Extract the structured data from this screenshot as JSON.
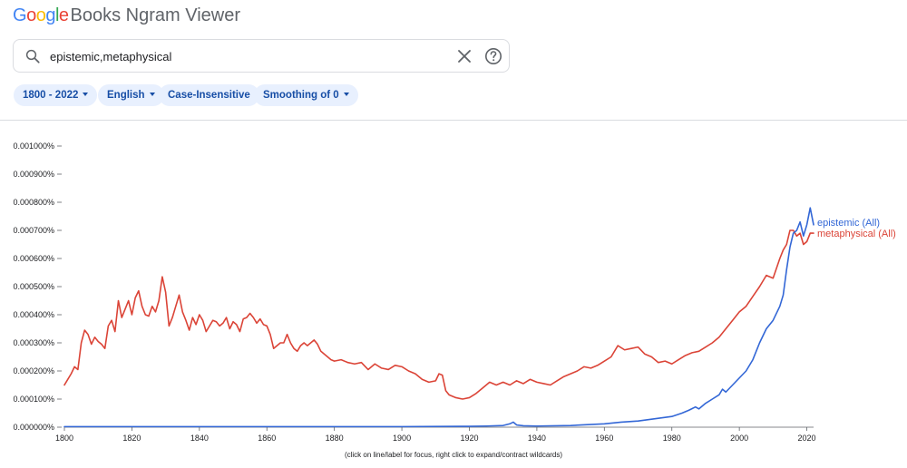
{
  "app": {
    "logo_text": "Google",
    "product_name": "Books Ngram Viewer"
  },
  "search": {
    "query": "epistemic,metaphysical",
    "icon": "search-icon"
  },
  "filters": {
    "year_range": "1800 - 2022",
    "corpus": "English",
    "case": "Case-Insensitive",
    "smoothing": "Smoothing of 0"
  },
  "footnote": "(click on line/label for focus, right click to expand/contract wildcards)",
  "colors": {
    "epistemic": "#3367d6",
    "metaphysical": "#db4437",
    "accent": "#174ea6",
    "chip_bg": "#e8f0fe"
  },
  "chart_data": {
    "type": "line",
    "title": "",
    "xlabel": "",
    "ylabel": "",
    "xlim": [
      1800,
      2022
    ],
    "ylim": [
      0,
      0.001
    ],
    "y_ticks": [
      {
        "value": 0.0,
        "label": "0.000000%"
      },
      {
        "value": 0.0001,
        "label": "0.000100%"
      },
      {
        "value": 0.0002,
        "label": "0.000200%"
      },
      {
        "value": 0.0003,
        "label": "0.000300%"
      },
      {
        "value": 0.0004,
        "label": "0.000400%"
      },
      {
        "value": 0.0005,
        "label": "0.000500%"
      },
      {
        "value": 0.0006,
        "label": "0.000600%"
      },
      {
        "value": 0.0007,
        "label": "0.000700%"
      },
      {
        "value": 0.0008,
        "label": "0.000800%"
      },
      {
        "value": 0.0009,
        "label": "0.000900%"
      },
      {
        "value": 0.001,
        "label": "0.001000%"
      }
    ],
    "x_ticks": [
      {
        "value": 1800,
        "label": "1800"
      },
      {
        "value": 1820,
        "label": "1820"
      },
      {
        "value": 1840,
        "label": "1840"
      },
      {
        "value": 1860,
        "label": "1860"
      },
      {
        "value": 1880,
        "label": "1880"
      },
      {
        "value": 1900,
        "label": "1900"
      },
      {
        "value": 1920,
        "label": "1920"
      },
      {
        "value": 1940,
        "label": "1940"
      },
      {
        "value": 1960,
        "label": "1960"
      },
      {
        "value": 1980,
        "label": "1980"
      },
      {
        "value": 2000,
        "label": "2000"
      },
      {
        "value": 2020,
        "label": "2020"
      }
    ],
    "grid": false,
    "legend": "inline-end-of-line",
    "series": [
      {
        "name": "epistemic (All)",
        "color": "#3367d6",
        "points": [
          [
            1800,
            2e-06
          ],
          [
            1820,
            2e-06
          ],
          [
            1840,
            2e-06
          ],
          [
            1860,
            2e-06
          ],
          [
            1880,
            2e-06
          ],
          [
            1900,
            2e-06
          ],
          [
            1920,
            3e-06
          ],
          [
            1925,
            4e-06
          ],
          [
            1930,
            6e-06
          ],
          [
            1932,
            1.2e-05
          ],
          [
            1933,
            1.8e-05
          ],
          [
            1934,
            8e-06
          ],
          [
            1936,
            5e-06
          ],
          [
            1940,
            4e-06
          ],
          [
            1950,
            6e-06
          ],
          [
            1960,
            1.2e-05
          ],
          [
            1965,
            1.8e-05
          ],
          [
            1970,
            2.2e-05
          ],
          [
            1975,
            3e-05
          ],
          [
            1980,
            3.8e-05
          ],
          [
            1983,
            5e-05
          ],
          [
            1985,
            6e-05
          ],
          [
            1987,
            7.2e-05
          ],
          [
            1988,
            6.5e-05
          ],
          [
            1990,
            8.5e-05
          ],
          [
            1992,
            0.0001
          ],
          [
            1994,
            0.000115
          ],
          [
            1995,
            0.000135
          ],
          [
            1996,
            0.000125
          ],
          [
            1998,
            0.00015
          ],
          [
            2000,
            0.000175
          ],
          [
            2002,
            0.0002
          ],
          [
            2004,
            0.00024
          ],
          [
            2006,
            0.0003
          ],
          [
            2008,
            0.00035
          ],
          [
            2010,
            0.00038
          ],
          [
            2012,
            0.00043
          ],
          [
            2013,
            0.00047
          ],
          [
            2014,
            0.00056
          ],
          [
            2015,
            0.00064
          ],
          [
            2016,
            0.00069
          ],
          [
            2017,
            0.0007
          ],
          [
            2018,
            0.00073
          ],
          [
            2019,
            0.00068
          ],
          [
            2020,
            0.00072
          ],
          [
            2021,
            0.00078
          ],
          [
            2022,
            0.00072
          ]
        ]
      },
      {
        "name": "metaphysical (All)",
        "color": "#db4437",
        "points": [
          [
            1800,
            0.00015
          ],
          [
            1801,
            0.00017
          ],
          [
            1802,
            0.00019
          ],
          [
            1803,
            0.000215
          ],
          [
            1804,
            0.000205
          ],
          [
            1805,
            0.0003
          ],
          [
            1806,
            0.000345
          ],
          [
            1807,
            0.00033
          ],
          [
            1808,
            0.000295
          ],
          [
            1809,
            0.00032
          ],
          [
            1810,
            0.000305
          ],
          [
            1811,
            0.000295
          ],
          [
            1812,
            0.00028
          ],
          [
            1813,
            0.00036
          ],
          [
            1814,
            0.00038
          ],
          [
            1815,
            0.00034
          ],
          [
            1816,
            0.00045
          ],
          [
            1817,
            0.00039
          ],
          [
            1818,
            0.00042
          ],
          [
            1819,
            0.00045
          ],
          [
            1820,
            0.0004
          ],
          [
            1821,
            0.00046
          ],
          [
            1822,
            0.000485
          ],
          [
            1823,
            0.00043
          ],
          [
            1824,
            0.0004
          ],
          [
            1825,
            0.000395
          ],
          [
            1826,
            0.00043
          ],
          [
            1827,
            0.00041
          ],
          [
            1828,
            0.00045
          ],
          [
            1829,
            0.000535
          ],
          [
            1830,
            0.00048
          ],
          [
            1831,
            0.00036
          ],
          [
            1832,
            0.00039
          ],
          [
            1833,
            0.00043
          ],
          [
            1834,
            0.00047
          ],
          [
            1835,
            0.00041
          ],
          [
            1836,
            0.00038
          ],
          [
            1837,
            0.000345
          ],
          [
            1838,
            0.00039
          ],
          [
            1839,
            0.000365
          ],
          [
            1840,
            0.0004
          ],
          [
            1841,
            0.00038
          ],
          [
            1842,
            0.00034
          ],
          [
            1843,
            0.00036
          ],
          [
            1844,
            0.00038
          ],
          [
            1845,
            0.000375
          ],
          [
            1846,
            0.00036
          ],
          [
            1847,
            0.00037
          ],
          [
            1848,
            0.00039
          ],
          [
            1849,
            0.00035
          ],
          [
            1850,
            0.000375
          ],
          [
            1851,
            0.000365
          ],
          [
            1852,
            0.00034
          ],
          [
            1853,
            0.000385
          ],
          [
            1854,
            0.00039
          ],
          [
            1855,
            0.000405
          ],
          [
            1856,
            0.00039
          ],
          [
            1857,
            0.00037
          ],
          [
            1858,
            0.000385
          ],
          [
            1859,
            0.000365
          ],
          [
            1860,
            0.00036
          ],
          [
            1861,
            0.00033
          ],
          [
            1862,
            0.00028
          ],
          [
            1863,
            0.00029
          ],
          [
            1864,
            0.0003
          ],
          [
            1865,
            0.0003
          ],
          [
            1866,
            0.00033
          ],
          [
            1867,
            0.0003
          ],
          [
            1868,
            0.00028
          ],
          [
            1869,
            0.00027
          ],
          [
            1870,
            0.00029
          ],
          [
            1871,
            0.0003
          ],
          [
            1872,
            0.00029
          ],
          [
            1873,
            0.0003
          ],
          [
            1874,
            0.00031
          ],
          [
            1875,
            0.000295
          ],
          [
            1876,
            0.00027
          ],
          [
            1877,
            0.00026
          ],
          [
            1878,
            0.00025
          ],
          [
            1879,
            0.00024
          ],
          [
            1880,
            0.000235
          ],
          [
            1882,
            0.00024
          ],
          [
            1884,
            0.00023
          ],
          [
            1886,
            0.000225
          ],
          [
            1888,
            0.00023
          ],
          [
            1890,
            0.000205
          ],
          [
            1892,
            0.000225
          ],
          [
            1894,
            0.00021
          ],
          [
            1896,
            0.000205
          ],
          [
            1898,
            0.00022
          ],
          [
            1900,
            0.000215
          ],
          [
            1902,
            0.0002
          ],
          [
            1904,
            0.00019
          ],
          [
            1906,
            0.00017
          ],
          [
            1908,
            0.00016
          ],
          [
            1910,
            0.000165
          ],
          [
            1911,
            0.00019
          ],
          [
            1912,
            0.000185
          ],
          [
            1913,
            0.00013
          ],
          [
            1914,
            0.000115
          ],
          [
            1916,
            0.000105
          ],
          [
            1918,
            0.0001
          ],
          [
            1920,
            0.000105
          ],
          [
            1922,
            0.00012
          ],
          [
            1924,
            0.00014
          ],
          [
            1926,
            0.00016
          ],
          [
            1928,
            0.00015
          ],
          [
            1930,
            0.00016
          ],
          [
            1932,
            0.00015
          ],
          [
            1934,
            0.000165
          ],
          [
            1936,
            0.000155
          ],
          [
            1938,
            0.00017
          ],
          [
            1940,
            0.00016
          ],
          [
            1942,
            0.000155
          ],
          [
            1944,
            0.00015
          ],
          [
            1946,
            0.000165
          ],
          [
            1948,
            0.00018
          ],
          [
            1950,
            0.00019
          ],
          [
            1952,
            0.0002
          ],
          [
            1954,
            0.000215
          ],
          [
            1956,
            0.00021
          ],
          [
            1958,
            0.00022
          ],
          [
            1960,
            0.000235
          ],
          [
            1962,
            0.00025
          ],
          [
            1964,
            0.00029
          ],
          [
            1966,
            0.000275
          ],
          [
            1968,
            0.00028
          ],
          [
            1970,
            0.000285
          ],
          [
            1972,
            0.00026
          ],
          [
            1974,
            0.00025
          ],
          [
            1976,
            0.00023
          ],
          [
            1978,
            0.000235
          ],
          [
            1980,
            0.000225
          ],
          [
            1982,
            0.00024
          ],
          [
            1984,
            0.000255
          ],
          [
            1986,
            0.000265
          ],
          [
            1988,
            0.00027
          ],
          [
            1990,
            0.000285
          ],
          [
            1992,
            0.0003
          ],
          [
            1994,
            0.00032
          ],
          [
            1996,
            0.00035
          ],
          [
            1998,
            0.00038
          ],
          [
            2000,
            0.00041
          ],
          [
            2002,
            0.00043
          ],
          [
            2004,
            0.000465
          ],
          [
            2006,
            0.0005
          ],
          [
            2008,
            0.00054
          ],
          [
            2010,
            0.00053
          ],
          [
            2012,
            0.0006
          ],
          [
            2013,
            0.00063
          ],
          [
            2014,
            0.00065
          ],
          [
            2015,
            0.0007
          ],
          [
            2016,
            0.0007
          ],
          [
            2017,
            0.00068
          ],
          [
            2018,
            0.00069
          ],
          [
            2019,
            0.00065
          ],
          [
            2020,
            0.00066
          ],
          [
            2021,
            0.00069
          ],
          [
            2022,
            0.00069
          ]
        ]
      }
    ]
  }
}
